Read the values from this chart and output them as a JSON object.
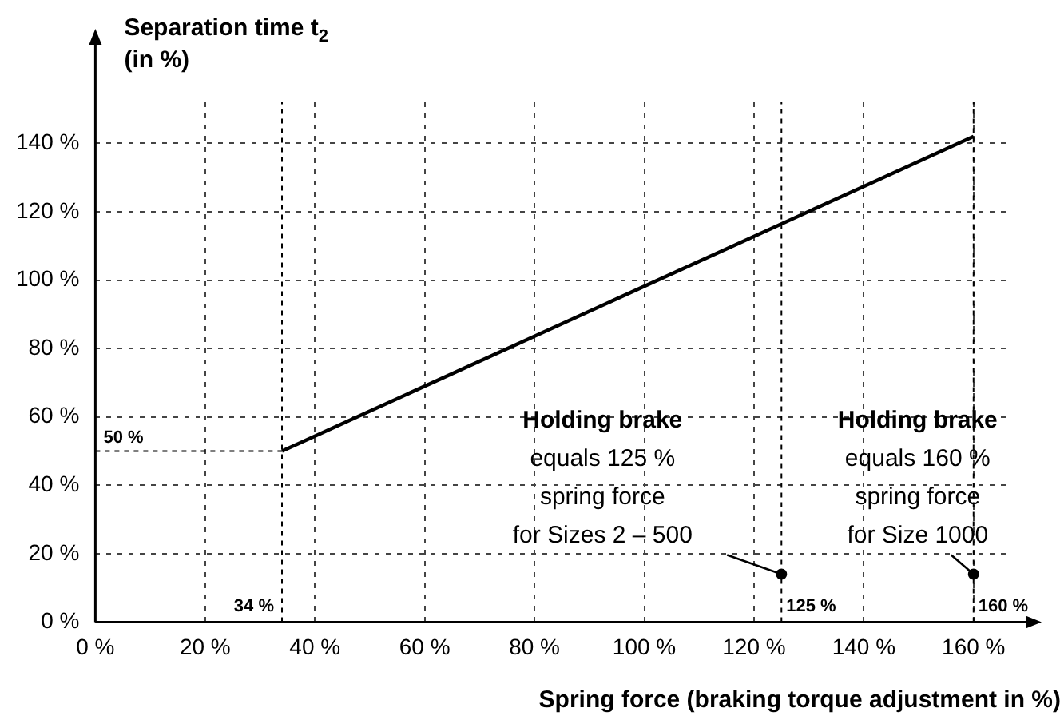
{
  "chart_data": {
    "type": "line",
    "xlabel": "Spring force (braking torque adjustment in %)",
    "ylabel": "Separation time t$_{2}$\n(in %)",
    "xlim": [
      0,
      166
    ],
    "ylim": [
      0,
      152
    ],
    "xticks": [
      {
        "value": 0,
        "label": "0 %"
      },
      {
        "value": 20,
        "label": "20 %"
      },
      {
        "value": 40,
        "label": "40 %"
      },
      {
        "value": 60,
        "label": "60 %"
      },
      {
        "value": 80,
        "label": "80 %"
      },
      {
        "value": 100,
        "label": "100 %"
      },
      {
        "value": 120,
        "label": "120 %"
      },
      {
        "value": 140,
        "label": "140 %"
      },
      {
        "value": 160,
        "label": "160 %"
      }
    ],
    "yticks": [
      {
        "value": 0,
        "label": "0 %"
      },
      {
        "value": 20,
        "label": "20 %"
      },
      {
        "value": 40,
        "label": "40 %"
      },
      {
        "value": 60,
        "label": "60 %"
      },
      {
        "value": 80,
        "label": "80 %"
      },
      {
        "value": 100,
        "label": "100 %"
      },
      {
        "value": 120,
        "label": "120 %"
      },
      {
        "value": 140,
        "label": "140 %"
      }
    ],
    "grid": true,
    "legend": false,
    "marker": "none",
    "line_style": "solid",
    "series": [
      {
        "color": "#000000",
        "x": [
          34,
          160
        ],
        "values": [
          50,
          142
        ]
      },
      {
        "type": "scatter",
        "color": "#000000",
        "marker": "circle",
        "x": [
          125,
          160
        ],
        "values": [
          14,
          14
        ]
      }
    ],
    "ref_lines": [
      {
        "axis": "y",
        "value": 50,
        "label": "50 %"
      },
      {
        "axis": "x",
        "value": 34,
        "label": "34 %"
      },
      {
        "axis": "x",
        "value": 125,
        "label": "125 %"
      },
      {
        "axis": "x",
        "value": 160,
        "label": "160 %"
      }
    ],
    "annotations": [
      "Holding brake\nequals 125 %\nspring force\nfor Sizes 2 – 500",
      "Holding brake\nequals 160 %\nspring force\nfor Size 1000"
    ]
  }
}
